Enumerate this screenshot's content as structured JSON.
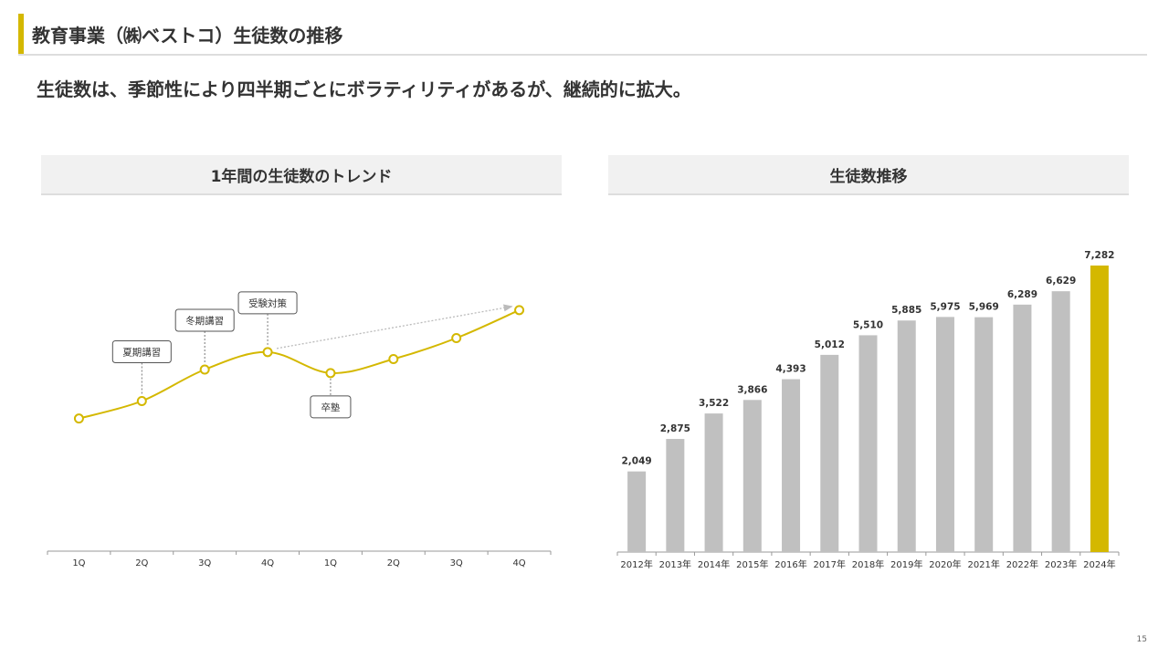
{
  "header": {
    "title": "教育事業（㈱ベストコ）生徒数の推移",
    "subtitle": "生徒数は、季節性により四半期ごとにボラティリティがあるが、継続的に拡大。"
  },
  "colors": {
    "accent": "#d4b800",
    "bar_gray": "#c0c0c0",
    "panel_bg": "#f1f1f1"
  },
  "page_number": "15",
  "chart_data": [
    {
      "type": "line",
      "title": "1年間の生徒数のトレンド",
      "categories": [
        "1Q",
        "2Q",
        "3Q",
        "4Q",
        "1Q",
        "2Q",
        "3Q",
        "4Q"
      ],
      "values": [
        16,
        21,
        30,
        35,
        29,
        33,
        39,
        47
      ],
      "y_axis_shown": false,
      "trend_arrow": {
        "from_index": 3,
        "to_index": 7
      },
      "annotations": [
        {
          "label": "夏期講習",
          "index": 1,
          "placement": "above"
        },
        {
          "label": "冬期講習",
          "index": 2,
          "placement": "above"
        },
        {
          "label": "受験対策",
          "index": 3,
          "placement": "above"
        },
        {
          "label": "卒塾",
          "index": 4,
          "placement": "below"
        }
      ]
    },
    {
      "type": "bar",
      "title": "生徒数推移",
      "categories": [
        "2012年",
        "2013年",
        "2014年",
        "2015年",
        "2016年",
        "2017年",
        "2018年",
        "2019年",
        "2020年",
        "2021年",
        "2022年",
        "2023年",
        "2024年"
      ],
      "values": [
        2049,
        2875,
        3522,
        3866,
        4393,
        5012,
        5510,
        5885,
        5975,
        5969,
        6289,
        6629,
        7282
      ],
      "value_labels": [
        "2,049",
        "2,875",
        "3,522",
        "3,866",
        "4,393",
        "5,012",
        "5,510",
        "5,885",
        "5,975",
        "5,969",
        "6,289",
        "6,629",
        "7,282"
      ],
      "highlight_index": 12,
      "ylim": [
        0,
        7282
      ]
    }
  ]
}
